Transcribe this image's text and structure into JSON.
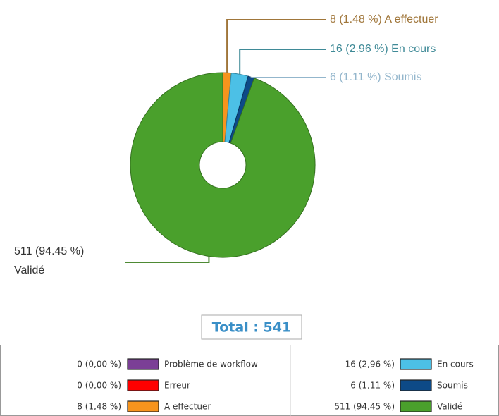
{
  "chart_data": {
    "type": "donut",
    "title": "Total : 541",
    "categories": [
      "Problème de workflow",
      "Erreur",
      "A effectuer",
      "En cours",
      "Soumis",
      "Validé"
    ],
    "values": [
      0,
      0,
      8,
      16,
      6,
      511
    ],
    "value_labels": [
      "0 (0,00 %)",
      "0 (0,00 %)",
      "8 (1,48 %)",
      "16 (2,96 %)",
      "6 (1,11 %)",
      "511 (94,45 %)"
    ],
    "callout_labels": [
      null,
      null,
      "8 (1.48 %)",
      "16 (2.96 %)",
      "6 (1.11 %)",
      "511 (94.45 %)"
    ],
    "colors": [
      "#7b3f96",
      "#ff0000",
      "#f7941d",
      "#4cc0e6",
      "#0d4a87",
      "#4aa02c"
    ],
    "callout_colors": [
      null,
      null,
      "#a0763a",
      "#3f8a97",
      "#93b6cc",
      "#4e8a34"
    ]
  }
}
